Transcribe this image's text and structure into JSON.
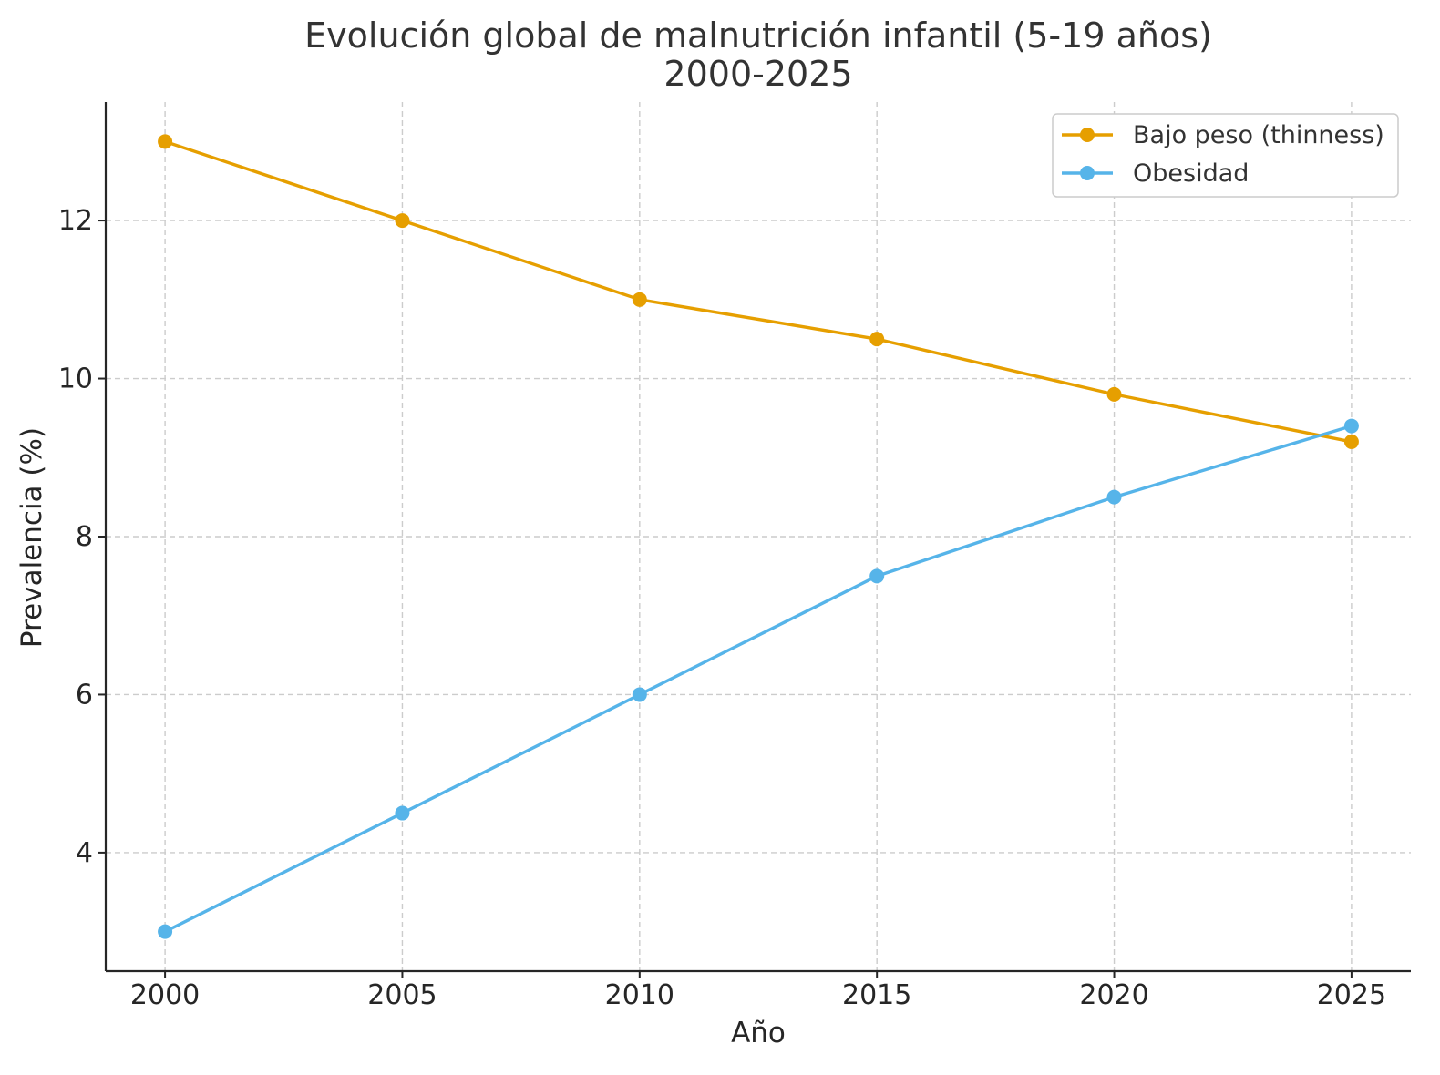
{
  "chart_data": {
    "type": "line",
    "title": [
      "Evolución global de malnutrición infantil (5-19 años)",
      "2000-2025"
    ],
    "xlabel": "Año",
    "ylabel": "Prevalencia (%)",
    "x": [
      2000,
      2005,
      2010,
      2015,
      2020,
      2025
    ],
    "xticks": [
      "2000",
      "2005",
      "2010",
      "2015",
      "2020",
      "2025"
    ],
    "yticks": [
      4,
      6,
      8,
      10,
      12
    ],
    "xlim": [
      1998.75,
      2026.25
    ],
    "ylim": [
      2.5,
      13.5
    ],
    "grid": true,
    "legend_position": "top-right",
    "series": [
      {
        "name": "Bajo peso (thinness)",
        "color": "#E69F00",
        "values": [
          13.0,
          12.0,
          11.0,
          10.5,
          9.8,
          9.2
        ]
      },
      {
        "name": "Obesidad",
        "color": "#56B4E9",
        "values": [
          3.0,
          4.5,
          6.0,
          7.5,
          8.5,
          9.4
        ]
      }
    ]
  }
}
